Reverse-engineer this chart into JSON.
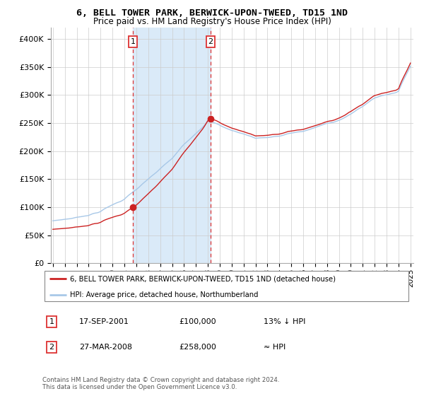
{
  "title": "6, BELL TOWER PARK, BERWICK-UPON-TWEED, TD15 1ND",
  "subtitle": "Price paid vs. HM Land Registry's House Price Index (HPI)",
  "legend_line1": "6, BELL TOWER PARK, BERWICK-UPON-TWEED, TD15 1ND (detached house)",
  "legend_line2": "HPI: Average price, detached house, Northumberland",
  "transaction1_date": "17-SEP-2001",
  "transaction1_price": 100000,
  "transaction1_note": "13% ↓ HPI",
  "transaction2_date": "27-MAR-2008",
  "transaction2_price": 258000,
  "transaction2_note": "≈ HPI",
  "footer1": "Contains HM Land Registry data © Crown copyright and database right 2024.",
  "footer2": "This data is licensed under the Open Government Licence v3.0.",
  "hpi_color": "#a8c8e8",
  "property_color": "#cc2222",
  "vline_color": "#dd3333",
  "shade_color": "#daeaf8",
  "dot_color": "#cc2222",
  "ylim": [
    0,
    420000
  ],
  "yticks": [
    0,
    50000,
    100000,
    150000,
    200000,
    250000,
    300000,
    350000,
    400000
  ],
  "ylabel_fmt": [
    "£0",
    "£50K",
    "£100K",
    "£150K",
    "£200K",
    "£250K",
    "£300K",
    "£350K",
    "£400K"
  ]
}
